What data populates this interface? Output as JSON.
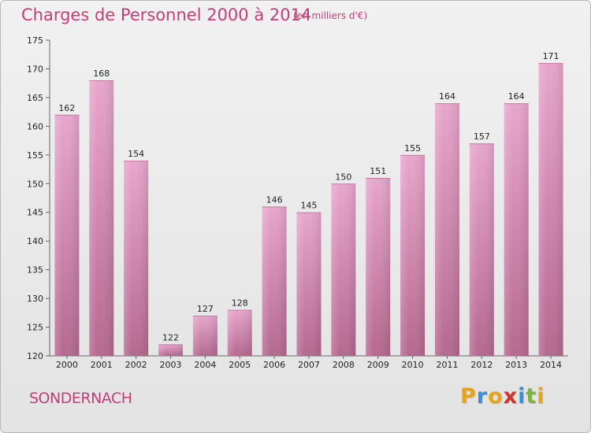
{
  "header": {
    "title": "Charges de Personnel 2000 à 2014",
    "subtitle": "(en milliers d'€)"
  },
  "footer": {
    "commune": "SONDERNACH",
    "logo_text": "Proxiti",
    "logo_letters": [
      {
        "ch": "P",
        "color": "#e8a317"
      },
      {
        "ch": "r",
        "color": "#3a8fd6"
      },
      {
        "ch": "o",
        "color": "#e8a317"
      },
      {
        "ch": "x",
        "color": "#d0342c"
      },
      {
        "ch": "i",
        "color": "#3a8fd6"
      },
      {
        "ch": "t",
        "color": "#7cb342"
      },
      {
        "ch": "i",
        "color": "#e8a317"
      }
    ]
  },
  "colors": {
    "accent": "#c23f78",
    "bar_top": "#e8a6cc",
    "bar_bottom": "#b5688f"
  },
  "chart_data": {
    "type": "bar",
    "title": "Charges de Personnel 2000 à 2014",
    "subtitle": "(en milliers d'€)",
    "categories": [
      "2000",
      "2001",
      "2002",
      "2003",
      "2004",
      "2005",
      "2006",
      "2007",
      "2008",
      "2009",
      "2010",
      "2011",
      "2012",
      "2013",
      "2014"
    ],
    "values": [
      162,
      168,
      154,
      122,
      127,
      128,
      146,
      145,
      150,
      151,
      155,
      164,
      157,
      164,
      171
    ],
    "xlabel": "",
    "ylabel": "",
    "ylim": [
      120,
      175
    ],
    "yticks": [
      120,
      125,
      130,
      135,
      140,
      145,
      150,
      155,
      160,
      165,
      170,
      175
    ],
    "grid": false,
    "legend": "none"
  }
}
